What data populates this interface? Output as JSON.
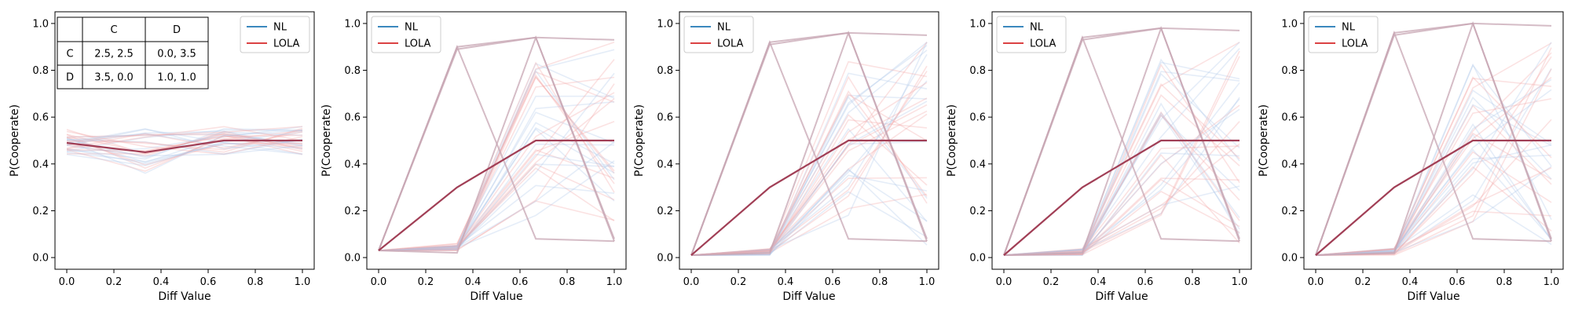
{
  "chart_data": [
    {
      "type": "line",
      "xlabel": "Diff Value",
      "ylabel": "P(Cooperate)",
      "xlim": [
        -0.05,
        1.05
      ],
      "ylim": [
        -0.05,
        1.05
      ],
      "xticks": [
        "0.0",
        "0.2",
        "0.4",
        "0.6",
        "0.8",
        "1.0"
      ],
      "yticks": [
        "0.0",
        "0.2",
        "0.4",
        "0.6",
        "0.8",
        "1.0"
      ],
      "legend": {
        "placement": "upper right"
      },
      "x": [
        0,
        0.333,
        0.667,
        1.0
      ],
      "series": [
        {
          "name": "NL",
          "values": [
            0.49,
            0.45,
            0.5,
            0.5
          ]
        },
        {
          "name": "LOLA",
          "values": [
            0.49,
            0.45,
            0.5,
            0.5
          ]
        }
      ],
      "payoff_table": {
        "col_headers": [
          "",
          "C",
          "D"
        ],
        "rows": [
          [
            "C",
            "2.5, 2.5",
            "0.0, 3.5"
          ],
          [
            "D",
            "3.5, 0.0",
            "1.0, 1.0"
          ]
        ]
      }
    },
    {
      "type": "line",
      "xlabel": "Diff Value",
      "ylabel": "P(Cooperate)",
      "xlim": [
        -0.05,
        1.05
      ],
      "ylim": [
        -0.05,
        1.05
      ],
      "xticks": [
        "0.0",
        "0.2",
        "0.4",
        "0.6",
        "0.8",
        "1.0"
      ],
      "yticks": [
        "0.0",
        "0.2",
        "0.4",
        "0.6",
        "0.8",
        "1.0"
      ],
      "legend": {
        "placement": "upper left"
      },
      "x": [
        0,
        0.333,
        0.667,
        1.0
      ],
      "series": [
        {
          "name": "NL",
          "values": [
            0.03,
            0.3,
            0.5,
            0.5
          ]
        },
        {
          "name": "LOLA",
          "values": [
            0.03,
            0.3,
            0.5,
            0.5
          ]
        }
      ]
    },
    {
      "type": "line",
      "xlabel": "Diff Value",
      "ylabel": "P(Cooperate)",
      "xlim": [
        -0.05,
        1.05
      ],
      "ylim": [
        -0.05,
        1.05
      ],
      "xticks": [
        "0.0",
        "0.2",
        "0.4",
        "0.6",
        "0.8",
        "1.0"
      ],
      "yticks": [
        "0.0",
        "0.2",
        "0.4",
        "0.6",
        "0.8",
        "1.0"
      ],
      "legend": {
        "placement": "upper left"
      },
      "x": [
        0,
        0.333,
        0.667,
        1.0
      ],
      "series": [
        {
          "name": "NL",
          "values": [
            0.01,
            0.3,
            0.5,
            0.5
          ]
        },
        {
          "name": "LOLA",
          "values": [
            0.01,
            0.3,
            0.5,
            0.5
          ]
        }
      ]
    },
    {
      "type": "line",
      "xlabel": "Diff Value",
      "ylabel": "P(Cooperate)",
      "xlim": [
        -0.05,
        1.05
      ],
      "ylim": [
        -0.05,
        1.05
      ],
      "xticks": [
        "0.0",
        "0.2",
        "0.4",
        "0.6",
        "0.8",
        "1.0"
      ],
      "yticks": [
        "0.0",
        "0.2",
        "0.4",
        "0.6",
        "0.8",
        "1.0"
      ],
      "legend": {
        "placement": "upper left"
      },
      "x": [
        0,
        0.333,
        0.667,
        1.0
      ],
      "series": [
        {
          "name": "NL",
          "values": [
            0.01,
            0.3,
            0.5,
            0.5
          ]
        },
        {
          "name": "LOLA",
          "values": [
            0.01,
            0.3,
            0.5,
            0.5
          ]
        }
      ]
    },
    {
      "type": "line",
      "xlabel": "Diff Value",
      "ylabel": "P(Cooperate)",
      "xlim": [
        -0.05,
        1.05
      ],
      "ylim": [
        -0.05,
        1.05
      ],
      "xticks": [
        "0.0",
        "0.2",
        "0.4",
        "0.6",
        "0.8",
        "1.0"
      ],
      "yticks": [
        "0.0",
        "0.2",
        "0.4",
        "0.6",
        "0.8",
        "1.0"
      ],
      "legend": {
        "placement": "upper left"
      },
      "x": [
        0,
        0.333,
        0.667,
        1.0
      ],
      "series": [
        {
          "name": "NL",
          "values": [
            0.01,
            0.3,
            0.5,
            0.5
          ]
        },
        {
          "name": "LOLA",
          "values": [
            0.01,
            0.3,
            0.5,
            0.5
          ]
        }
      ]
    }
  ],
  "colors": {
    "NL": "#1f77b4",
    "LOLA": "#d62728",
    "mean": "#a13f56",
    "faint_blue": "#aec7e8",
    "faint_red": "#f4a6a6",
    "trajectory": "#c7a6b3"
  }
}
